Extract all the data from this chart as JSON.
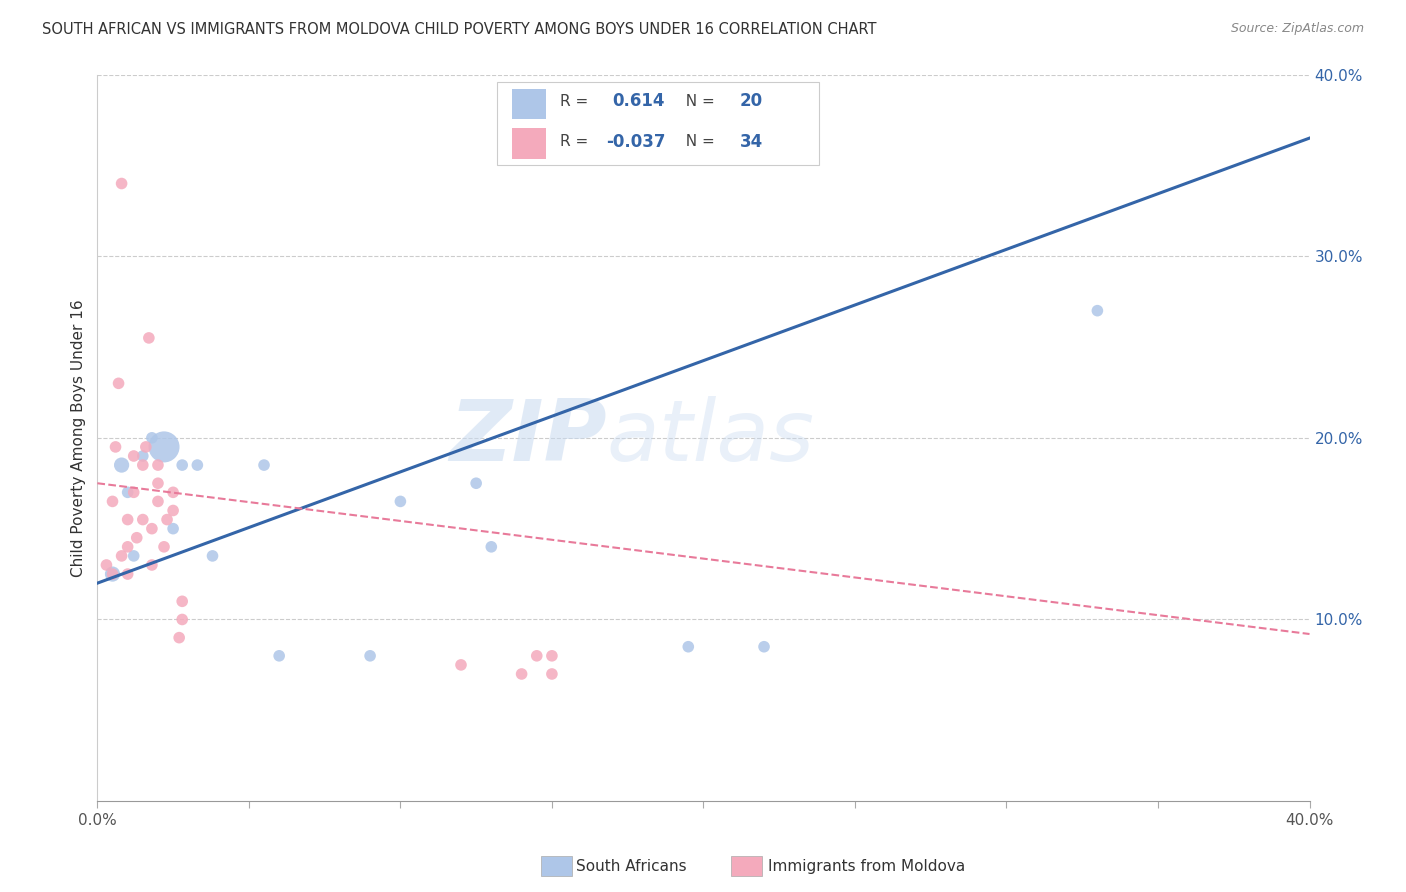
{
  "title": "SOUTH AFRICAN VS IMMIGRANTS FROM MOLDOVA CHILD POVERTY AMONG BOYS UNDER 16 CORRELATION CHART",
  "source": "Source: ZipAtlas.com",
  "ylabel": "Child Poverty Among Boys Under 16",
  "xlim": [
    0,
    0.4
  ],
  "ylim": [
    0,
    0.4
  ],
  "yticks": [
    0.1,
    0.2,
    0.3,
    0.4
  ],
  "ytick_labels": [
    "10.0%",
    "20.0%",
    "30.0%",
    "40.0%"
  ],
  "xticks": [
    0.0,
    0.05,
    0.1,
    0.15,
    0.2,
    0.25,
    0.3,
    0.35,
    0.4
  ],
  "legend_blue_r": "0.614",
  "legend_blue_n": "20",
  "legend_pink_r": "-0.037",
  "legend_pink_n": "34",
  "legend_blue_label": "South Africans",
  "legend_pink_label": "Immigrants from Moldova",
  "blue_color": "#aec6e8",
  "pink_color": "#f4aabc",
  "blue_line_color": "#3465a8",
  "pink_line_color": "#e87a9a",
  "watermark": "ZIPatlas",
  "blue_scatter_x": [
    0.005,
    0.008,
    0.01,
    0.012,
    0.015,
    0.018,
    0.022,
    0.025,
    0.028,
    0.033,
    0.038,
    0.055,
    0.06,
    0.09,
    0.1,
    0.125,
    0.13,
    0.195,
    0.22,
    0.33
  ],
  "blue_scatter_y": [
    0.125,
    0.185,
    0.17,
    0.135,
    0.19,
    0.2,
    0.195,
    0.15,
    0.185,
    0.185,
    0.135,
    0.185,
    0.08,
    0.08,
    0.165,
    0.175,
    0.14,
    0.085,
    0.085,
    0.27
  ],
  "blue_scatter_size": [
    120,
    120,
    70,
    70,
    70,
    70,
    500,
    70,
    70,
    70,
    70,
    70,
    70,
    70,
    70,
    70,
    70,
    70,
    70,
    70
  ],
  "pink_scatter_x": [
    0.003,
    0.005,
    0.005,
    0.006,
    0.007,
    0.008,
    0.008,
    0.01,
    0.01,
    0.01,
    0.012,
    0.012,
    0.013,
    0.015,
    0.015,
    0.016,
    0.017,
    0.018,
    0.018,
    0.02,
    0.02,
    0.02,
    0.022,
    0.023,
    0.025,
    0.025,
    0.027,
    0.028,
    0.028,
    0.12,
    0.14,
    0.145,
    0.15,
    0.15
  ],
  "pink_scatter_y": [
    0.13,
    0.125,
    0.165,
    0.195,
    0.23,
    0.34,
    0.135,
    0.125,
    0.14,
    0.155,
    0.17,
    0.19,
    0.145,
    0.155,
    0.185,
    0.195,
    0.255,
    0.13,
    0.15,
    0.165,
    0.175,
    0.185,
    0.14,
    0.155,
    0.16,
    0.17,
    0.09,
    0.1,
    0.11,
    0.075,
    0.07,
    0.08,
    0.07,
    0.08
  ],
  "pink_scatter_size": [
    70,
    70,
    70,
    70,
    70,
    70,
    70,
    70,
    70,
    70,
    70,
    70,
    70,
    70,
    70,
    70,
    70,
    70,
    70,
    70,
    70,
    70,
    70,
    70,
    70,
    70,
    70,
    70,
    70,
    70,
    70,
    70,
    70,
    70
  ],
  "blue_line_x": [
    0.0,
    0.4
  ],
  "blue_line_y_start": 0.12,
  "blue_line_y_end": 0.365,
  "pink_line_x": [
    0.0,
    0.4
  ],
  "pink_line_y_start": 0.175,
  "pink_line_y_end": 0.092,
  "grid_color": "#cccccc",
  "background_color": "#ffffff",
  "title_color": "#333333"
}
